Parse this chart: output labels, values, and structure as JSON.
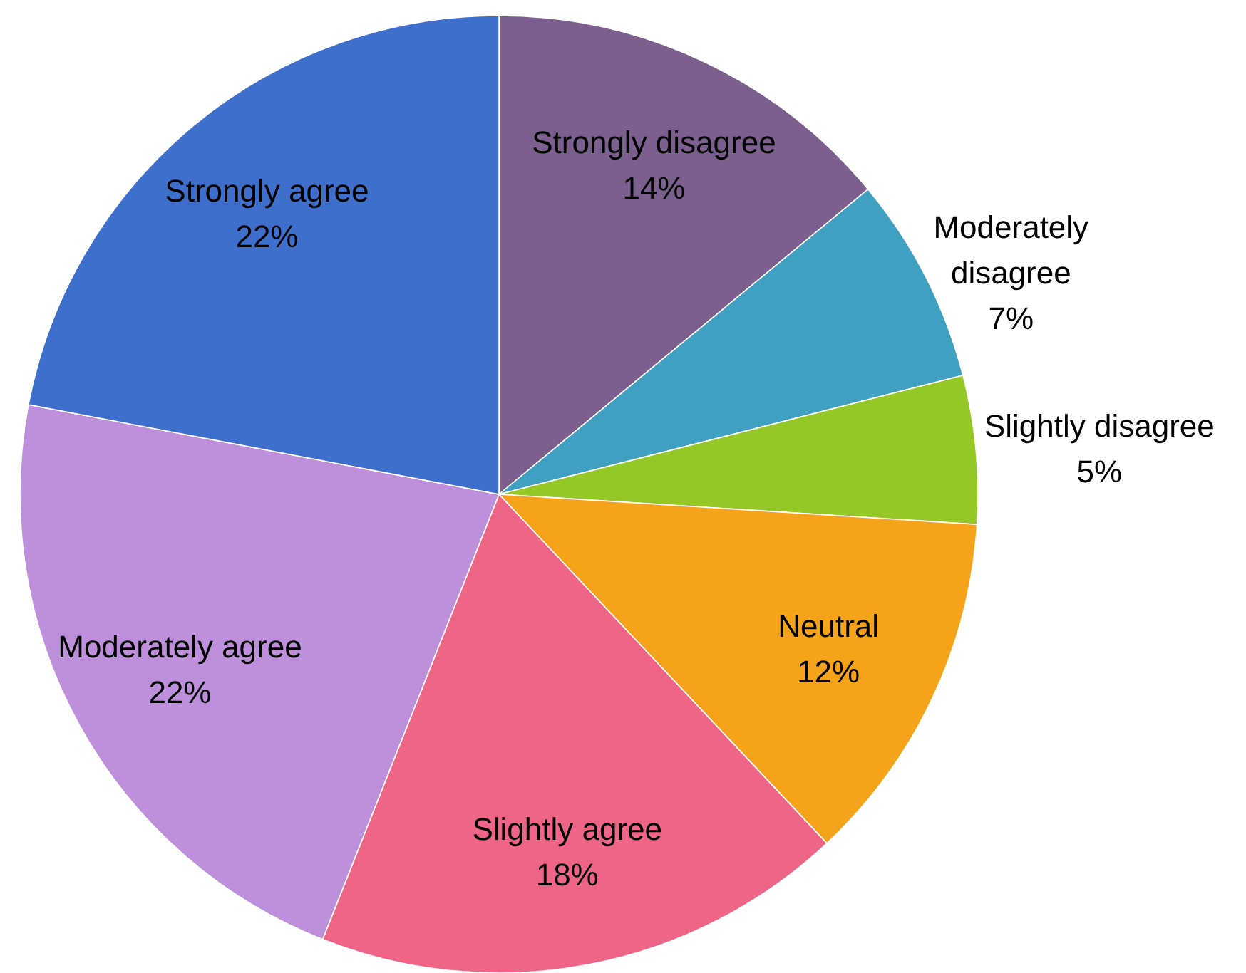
{
  "chart_data": {
    "type": "pie",
    "categories": [
      "Strongly disagree",
      "Moderately disagree",
      "Slightly disagree",
      "Neutral",
      "Slightly agree",
      "Moderately agree",
      "Strongly agree"
    ],
    "values": [
      14,
      7,
      5,
      12,
      18,
      22,
      22
    ],
    "value_labels": [
      "14%",
      "7%",
      "5%",
      "12%",
      "18%",
      "22%",
      "22%"
    ],
    "colors": [
      "#7b5f8f",
      "#40a0c2",
      "#95c826",
      "#f4a31a",
      "#ef6586",
      "#be8fda",
      "#3e6fcc"
    ],
    "legend": false
  }
}
